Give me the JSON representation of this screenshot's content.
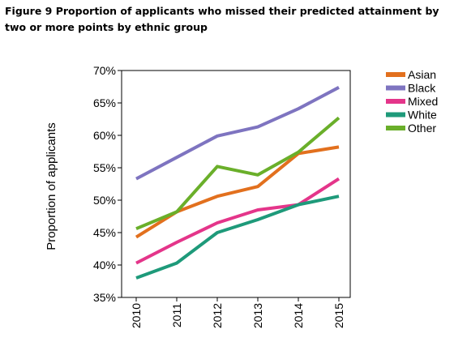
{
  "figure": {
    "title": "Figure 9 Proportion of applicants who missed their predicted attainment by two or more points by ethnic group"
  },
  "chart_data": {
    "type": "line",
    "title": "",
    "xlabel": "",
    "ylabel": "Proportion of applicants",
    "x": [
      "2010",
      "2011",
      "2012",
      "2013",
      "2014",
      "2015"
    ],
    "y_ticks": [
      "35%",
      "40%",
      "45%",
      "50%",
      "55%",
      "60%",
      "65%",
      "70%"
    ],
    "ylim": [
      35,
      70
    ],
    "grid": false,
    "legend_position": "right",
    "series": [
      {
        "name": "Asian",
        "color": "#E2701E",
        "values": [
          44.3,
          48.2,
          50.6,
          52.1,
          57.2,
          58.2
        ]
      },
      {
        "name": "Black",
        "color": "#7E74C0",
        "values": [
          53.3,
          56.6,
          59.9,
          61.3,
          64.1,
          67.4
        ]
      },
      {
        "name": "Mixed",
        "color": "#E4358A",
        "values": [
          40.3,
          43.5,
          46.5,
          48.5,
          49.3,
          53.3
        ]
      },
      {
        "name": "White",
        "color": "#1E9A7A",
        "values": [
          38.0,
          40.3,
          45.0,
          47.0,
          49.3,
          50.6
        ]
      },
      {
        "name": "Other",
        "color": "#6AAF2A",
        "values": [
          45.6,
          48.2,
          55.2,
          53.9,
          57.4,
          62.7
        ]
      }
    ]
  }
}
